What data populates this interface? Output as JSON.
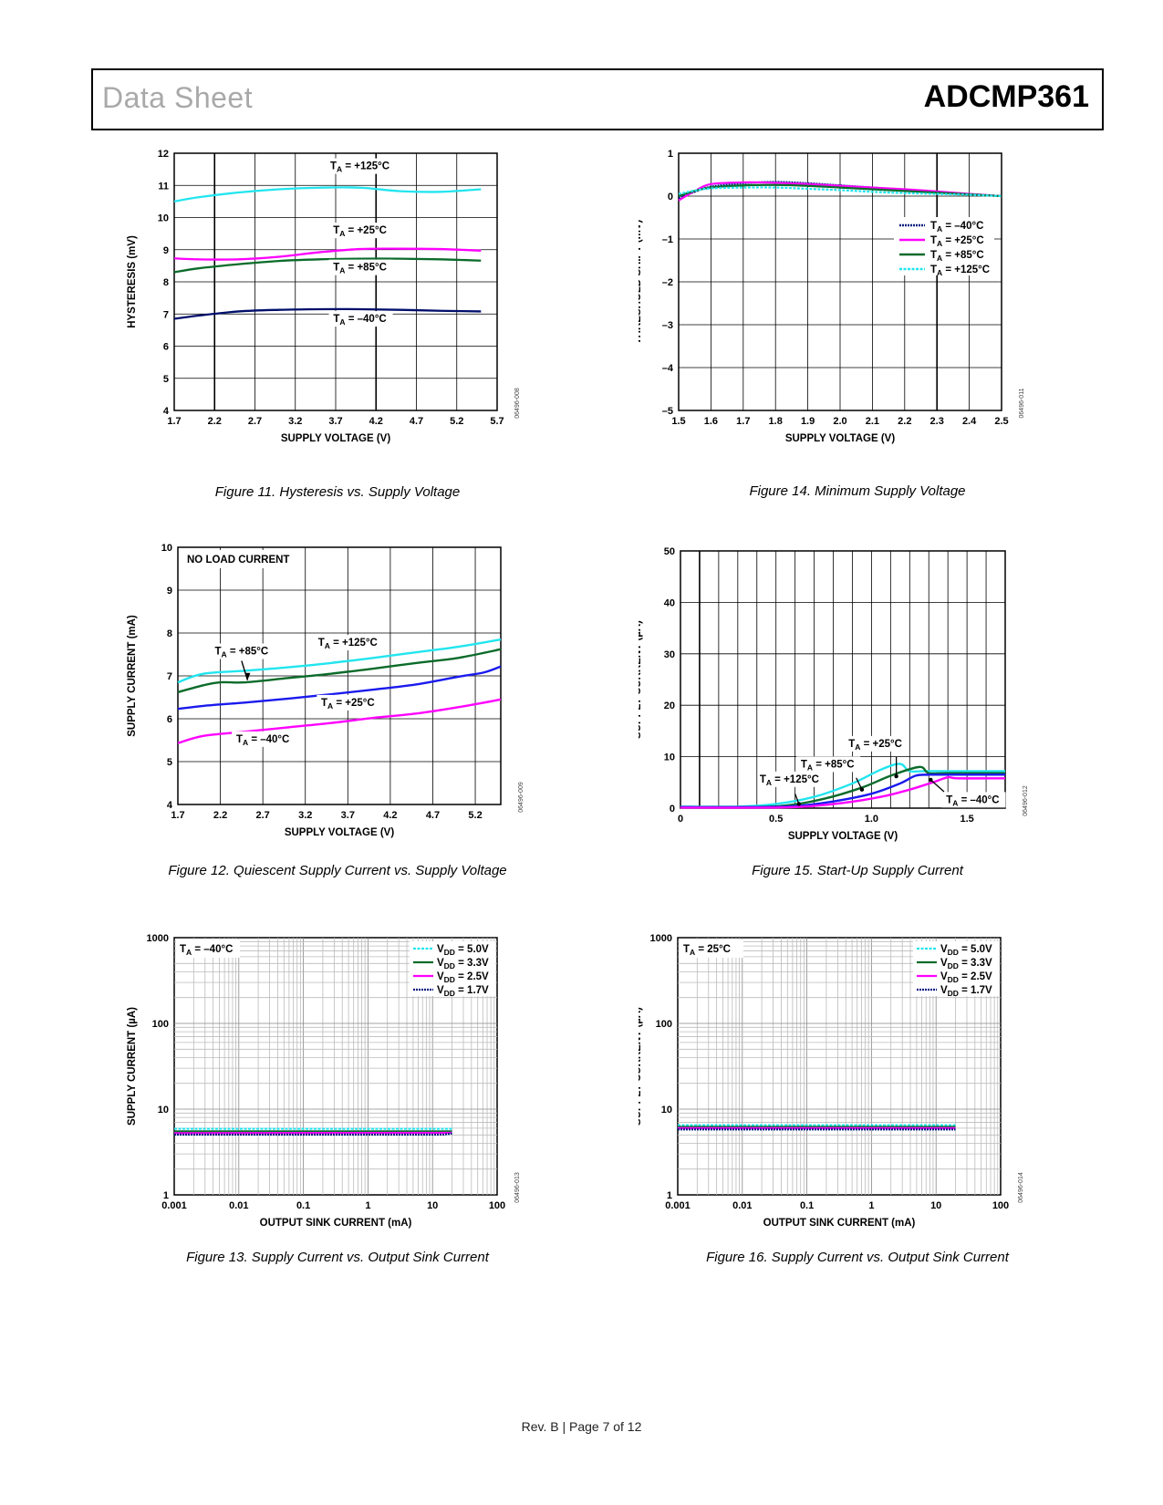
{
  "header": {
    "doc_type": "Data Sheet",
    "part_number": "ADCMP361"
  },
  "footer": "Rev. B | Page 7 of 12",
  "colors": {
    "m40": "#001a80",
    "p25": "#ff00ff",
    "p85": "#0b6b2a",
    "p125": "#22e5ef",
    "blue": "#1a1aee",
    "navy": "#000f6b"
  },
  "chart_data": [
    {
      "id": "fig11",
      "type": "line",
      "title": "Figure 11. Hysteresis vs. Supply Voltage",
      "xlabel": "SUPPLY VOLTAGE (V)",
      "ylabel": "HYSTERESIS (mV)",
      "xlim": [
        1.7,
        5.7
      ],
      "ylim": [
        4,
        12
      ],
      "xticks": [
        "1.7",
        "2.2",
        "2.7",
        "3.2",
        "3.7",
        "4.2",
        "4.7",
        "5.2",
        "5.7"
      ],
      "yticks": [
        "4",
        "5",
        "6",
        "7",
        "8",
        "9",
        "10",
        "11",
        "12"
      ],
      "code": "06496-008",
      "series": [
        {
          "name": "TA = +125°C",
          "label": "T",
          "sub": "A",
          "rest": " = +125°C",
          "color": "#22e5ef",
          "x": [
            1.7,
            2.0,
            2.5,
            3.0,
            3.5,
            4.0,
            4.5,
            5.0,
            5.5
          ],
          "y": [
            10.5,
            10.63,
            10.78,
            10.88,
            10.93,
            10.93,
            10.82,
            10.8,
            10.88
          ]
        },
        {
          "name": "TA = +25°C",
          "label": "T",
          "sub": "A",
          "rest": " = +25°C",
          "color": "#ff00ff",
          "x": [
            1.7,
            2.0,
            2.5,
            3.0,
            3.5,
            4.0,
            4.5,
            5.0,
            5.5
          ],
          "y": [
            8.73,
            8.7,
            8.7,
            8.78,
            8.92,
            9.02,
            9.03,
            9.02,
            8.97
          ]
        },
        {
          "name": "TA = +85°C",
          "label": "T",
          "sub": "A",
          "rest": " = +85°C",
          "color": "#0b6b2a",
          "x": [
            1.7,
            2.0,
            2.5,
            3.0,
            3.5,
            4.0,
            4.5,
            5.0,
            5.5
          ],
          "y": [
            8.3,
            8.42,
            8.55,
            8.65,
            8.7,
            8.72,
            8.72,
            8.7,
            8.66
          ]
        },
        {
          "name": "TA = –40°C",
          "label": "T",
          "sub": "A",
          "rest": " = –40°C",
          "color": "#000f6b",
          "x": [
            1.7,
            2.0,
            2.5,
            3.0,
            3.5,
            4.0,
            4.5,
            5.0,
            5.5
          ],
          "y": [
            6.85,
            6.95,
            7.08,
            7.13,
            7.15,
            7.15,
            7.13,
            7.1,
            7.08
          ]
        }
      ]
    },
    {
      "id": "fig14",
      "type": "line",
      "title": "Figure 14. Minimum Supply Voltage",
      "xlabel": "SUPPLY VOLTAGE (V)",
      "ylabel": "THRESHOLD SHIFT (mV)",
      "xlim": [
        1.5,
        2.5
      ],
      "ylim": [
        -5,
        1
      ],
      "xticks": [
        "1.5",
        "1.6",
        "1.7",
        "1.8",
        "1.9",
        "2.0",
        "2.1",
        "2.2",
        "2.3",
        "2.4",
        "2.5"
      ],
      "yticks": [
        "–5",
        "–4",
        "–3",
        "–2",
        "–1",
        "0",
        "1"
      ],
      "code": "06496-011",
      "series": [
        {
          "name": "TA = –40°C",
          "label": "T",
          "sub": "A",
          "rest": " = –40°C",
          "color": "#001a80",
          "x": [
            1.5,
            1.55,
            1.6,
            1.7,
            1.8,
            1.9,
            2.0,
            2.1,
            2.2,
            2.3,
            2.4,
            2.5
          ],
          "y": [
            -0.05,
            0.1,
            0.22,
            0.3,
            0.33,
            0.3,
            0.25,
            0.2,
            0.15,
            0.1,
            0.05,
            0.0
          ]
        },
        {
          "name": "TA = +25°C",
          "label": "T",
          "sub": "A",
          "rest": " = +25°C",
          "color": "#ff00ff",
          "x": [
            1.5,
            1.55,
            1.6,
            1.7,
            1.8,
            1.9,
            2.0,
            2.1,
            2.2,
            2.3,
            2.4,
            2.5
          ],
          "y": [
            -0.1,
            0.12,
            0.28,
            0.32,
            0.31,
            0.28,
            0.24,
            0.2,
            0.16,
            0.11,
            0.05,
            0.0
          ]
        },
        {
          "name": "TA = +85°C",
          "label": "T",
          "sub": "A",
          "rest": " = +85°C",
          "color": "#0b6b2a",
          "x": [
            1.5,
            1.55,
            1.6,
            1.7,
            1.8,
            1.9,
            2.0,
            2.1,
            2.2,
            2.3,
            2.4,
            2.5
          ],
          "y": [
            0.0,
            0.12,
            0.2,
            0.25,
            0.26,
            0.24,
            0.2,
            0.16,
            0.12,
            0.08,
            0.04,
            0.0
          ]
        },
        {
          "name": "TA = +125°C",
          "label": "T",
          "sub": "A",
          "rest": " = +125°C",
          "color": "#22e5ef",
          "x": [
            1.5,
            1.55,
            1.6,
            1.7,
            1.8,
            1.9,
            2.0,
            2.1,
            2.2,
            2.3,
            2.4,
            2.5
          ],
          "y": [
            0.05,
            0.13,
            0.18,
            0.2,
            0.2,
            0.17,
            0.14,
            0.1,
            0.07,
            0.05,
            0.03,
            0.0
          ]
        }
      ]
    },
    {
      "id": "fig12",
      "type": "line",
      "title": "Figure 12. Quiescent Supply Current vs. Supply Voltage",
      "xlabel": "SUPPLY VOLTAGE (V)",
      "ylabel": "SUPPLY CURRENT (mA)",
      "note": "NO LOAD CURRENT",
      "xlim": [
        1.7,
        5.5
      ],
      "ylim": [
        4,
        10
      ],
      "xticks": [
        "1.7",
        "2.2",
        "2.7",
        "3.2",
        "3.7",
        "4.2",
        "4.7",
        "5.2"
      ],
      "yticks": [
        "4",
        "5",
        "6",
        "7",
        "8",
        "9",
        "10"
      ],
      "code": "06496-009",
      "series": [
        {
          "name": "TA = +125°C",
          "label": "T",
          "sub": "A",
          "rest": " = +125°C",
          "color": "#22e5ef",
          "x": [
            1.7,
            2.0,
            2.5,
            3.0,
            3.5,
            4.0,
            4.5,
            5.0,
            5.5
          ],
          "y": [
            6.85,
            7.05,
            7.12,
            7.2,
            7.3,
            7.42,
            7.55,
            7.68,
            7.85
          ]
        },
        {
          "name": "TA = +85°C",
          "label": "T",
          "sub": "A",
          "rest": " = +85°C",
          "color": "#0b6b2a",
          "x": [
            1.7,
            2.0,
            2.2,
            2.5,
            3.0,
            3.5,
            4.0,
            4.5,
            5.0,
            5.5
          ],
          "y": [
            6.62,
            6.78,
            6.85,
            6.85,
            6.95,
            7.05,
            7.17,
            7.3,
            7.42,
            7.62
          ]
        },
        {
          "name": "TA = +25°C",
          "label": "T",
          "sub": "A",
          "rest": " = +25°C",
          "color": "#1a1aee",
          "x": [
            1.7,
            2.0,
            2.5,
            3.0,
            3.5,
            4.0,
            4.5,
            5.0,
            5.3,
            5.5
          ],
          "y": [
            6.23,
            6.3,
            6.38,
            6.47,
            6.57,
            6.68,
            6.8,
            6.98,
            7.08,
            7.22
          ]
        },
        {
          "name": "TA = –40°C",
          "label": "T",
          "sub": "A",
          "rest": " = –40°C",
          "color": "#ff00ff",
          "x": [
            1.7,
            2.0,
            2.5,
            3.0,
            3.5,
            4.0,
            4.5,
            5.0,
            5.5
          ],
          "y": [
            5.43,
            5.6,
            5.7,
            5.8,
            5.9,
            6.02,
            6.12,
            6.27,
            6.45
          ]
        }
      ]
    },
    {
      "id": "fig15",
      "type": "line",
      "title": "Figure 15. Start-Up Supply Current",
      "xlabel": "SUPPLY VOLTAGE (V)",
      "ylabel": "SUPPLY CURRENT (µA)",
      "xlim": [
        0,
        1.7
      ],
      "ylim": [
        0,
        50
      ],
      "xticks": [
        "0",
        "0.5",
        "1.0",
        "1.5"
      ],
      "yticks": [
        "0",
        "10",
        "20",
        "30",
        "40",
        "50"
      ],
      "code": "06496-012",
      "series": [
        {
          "name": "TA = +125°C",
          "label": "T",
          "sub": "A",
          "rest": " = +125°C",
          "color": "#22e5ef",
          "x": [
            0,
            0.3,
            0.5,
            0.7,
            0.9,
            1.05,
            1.15,
            1.2,
            1.3,
            1.7
          ],
          "y": [
            0.3,
            0.3,
            0.8,
            2.2,
            4.8,
            7.5,
            8.6,
            7.2,
            7.2,
            7.2
          ]
        },
        {
          "name": "TA = +85°C",
          "label": "T",
          "sub": "A",
          "rest": " = +85°C",
          "color": "#0b6b2a",
          "x": [
            0,
            0.35,
            0.55,
            0.75,
            0.95,
            1.1,
            1.25,
            1.3,
            1.4,
            1.7
          ],
          "y": [
            0.2,
            0.2,
            0.5,
            1.8,
            4.0,
            6.3,
            8.0,
            6.8,
            6.8,
            6.8
          ]
        },
        {
          "name": "TA = +25°C",
          "label": "T",
          "sub": "A",
          "rest": " = +25°C",
          "color": "#1a1aee",
          "x": [
            0,
            0.4,
            0.6,
            0.8,
            1.0,
            1.15,
            1.23,
            1.3,
            1.4,
            1.7
          ],
          "y": [
            0.2,
            0.2,
            0.4,
            1.3,
            2.8,
            4.8,
            6.3,
            6.5,
            6.5,
            6.5
          ]
        },
        {
          "name": "TA = –40°C",
          "label": "T",
          "sub": "A",
          "rest": " = –40°C",
          "color": "#ff00ff",
          "x": [
            0,
            0.45,
            0.65,
            0.85,
            1.05,
            1.2,
            1.32,
            1.4,
            1.45,
            1.7
          ],
          "y": [
            0.1,
            0.1,
            0.3,
            1.0,
            2.2,
            3.6,
            5.0,
            6.0,
            5.8,
            5.8
          ]
        }
      ]
    },
    {
      "id": "fig13",
      "type": "line",
      "xscale": "log",
      "yscale": "log",
      "title": "Figure 13. Supply Current vs. Output Sink Current",
      "xlabel": "OUTPUT SINK CURRENT (mA)",
      "ylabel": "SUPPLY CURRENT (µA)",
      "note_label": "T",
      "note_sub": "A",
      "note_rest": " = –40°C",
      "xlim": [
        0.001,
        100
      ],
      "ylim": [
        1,
        1000
      ],
      "xticks": [
        "0.001",
        "0.01",
        "0.1",
        "1",
        "10",
        "100"
      ],
      "yticks": [
        "1",
        "10",
        "100",
        "1000"
      ],
      "code": "06496-013",
      "series": [
        {
          "name": "VDD = 5.0V",
          "label": "V",
          "sub": "DD",
          "rest": " = 5.0V",
          "color": "#22e5ef",
          "x": [
            0.001,
            20
          ],
          "y": [
            5.9,
            5.9
          ]
        },
        {
          "name": "VDD = 3.3V",
          "label": "V",
          "sub": "DD",
          "rest": " = 3.3V",
          "color": "#0b6b2a",
          "x": [
            0.001,
            20
          ],
          "y": [
            5.5,
            5.5
          ]
        },
        {
          "name": "VDD = 2.5V",
          "label": "V",
          "sub": "DD",
          "rest": " = 2.5V",
          "color": "#ff00ff",
          "x": [
            0.001,
            20
          ],
          "y": [
            5.25,
            5.3
          ]
        },
        {
          "name": "VDD = 1.7V",
          "label": "V",
          "sub": "DD",
          "rest": " = 1.7V",
          "color": "#001a80",
          "x": [
            0.001,
            15,
            20
          ],
          "y": [
            5.05,
            5.05,
            5.2
          ]
        }
      ]
    },
    {
      "id": "fig16",
      "type": "line",
      "xscale": "log",
      "yscale": "log",
      "title": "Figure 16. Supply Current vs. Output Sink Current",
      "xlabel": "OUTPUT SINK CURRENT (mA)",
      "ylabel": "SUPPLY CURRENT (µA)",
      "note_label": "T",
      "note_sub": "A",
      "note_rest": " = 25°C",
      "xlim": [
        0.001,
        100
      ],
      "ylim": [
        1,
        1000
      ],
      "xticks": [
        "0.001",
        "0.01",
        "0.1",
        "1",
        "10",
        "100"
      ],
      "yticks": [
        "1",
        "10",
        "100",
        "1000"
      ],
      "code": "06496-014",
      "series": [
        {
          "name": "VDD = 5.0V",
          "label": "V",
          "sub": "DD",
          "rest": " = 5.0V",
          "color": "#22e5ef",
          "x": [
            0.001,
            20
          ],
          "y": [
            6.5,
            6.5
          ]
        },
        {
          "name": "VDD = 3.3V",
          "label": "V",
          "sub": "DD",
          "rest": " = 3.3V",
          "color": "#0b6b2a",
          "x": [
            0.001,
            20
          ],
          "y": [
            6.2,
            6.2
          ]
        },
        {
          "name": "VDD = 2.5V",
          "label": "V",
          "sub": "DD",
          "rest": " = 2.5V",
          "color": "#ff00ff",
          "x": [
            0.001,
            20
          ],
          "y": [
            6.0,
            6.0
          ]
        },
        {
          "name": "VDD = 1.7V",
          "label": "V",
          "sub": "DD",
          "rest": " = 1.7V",
          "color": "#001a80",
          "x": [
            0.001,
            20
          ],
          "y": [
            5.8,
            5.8
          ]
        }
      ]
    }
  ]
}
